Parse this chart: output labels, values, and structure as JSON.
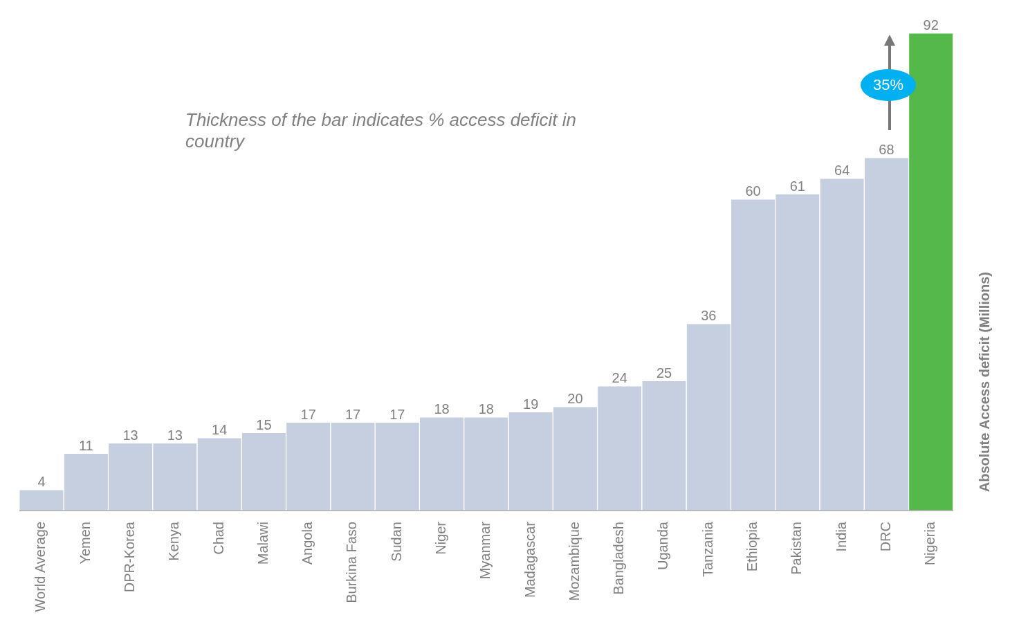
{
  "chart_data": {
    "type": "bar",
    "ylabel": "Absolute Access deficit (Millions)",
    "categories": [
      "World Average",
      "Yemen",
      "DPR-Korea",
      "Kenya",
      "Chad",
      "Malawi",
      "Angola",
      "Burkina Faso",
      "Sudan",
      "Niger",
      "Myanmar",
      "Madagascar",
      "Mozambique",
      "Bangladesh",
      "Uganda",
      "Tanzania",
      "Ethiopia",
      "Pakistan",
      "India",
      "DRC",
      "Nigeria"
    ],
    "values": [
      4,
      11,
      13,
      13,
      14,
      15,
      17,
      17,
      17,
      18,
      18,
      19,
      20,
      24,
      25,
      36,
      60,
      61,
      64,
      68,
      92
    ],
    "colors": [
      "#c5cfe0",
      "#c5cfe0",
      "#c5cfe0",
      "#c5cfe0",
      "#c5cfe0",
      "#c5cfe0",
      "#c5cfe0",
      "#c5cfe0",
      "#c5cfe0",
      "#c5cfe0",
      "#c5cfe0",
      "#c5cfe0",
      "#c5cfe0",
      "#c5cfe0",
      "#c5cfe0",
      "#c5cfe0",
      "#c5cfe0",
      "#c5cfe0",
      "#c5cfe0",
      "#c5cfe0",
      "#55b84a"
    ],
    "data_labels": true,
    "grid": false,
    "legend": false,
    "annotations": [
      "Thickness of the bar indicates % access deficit in country",
      "35%"
    ]
  }
}
